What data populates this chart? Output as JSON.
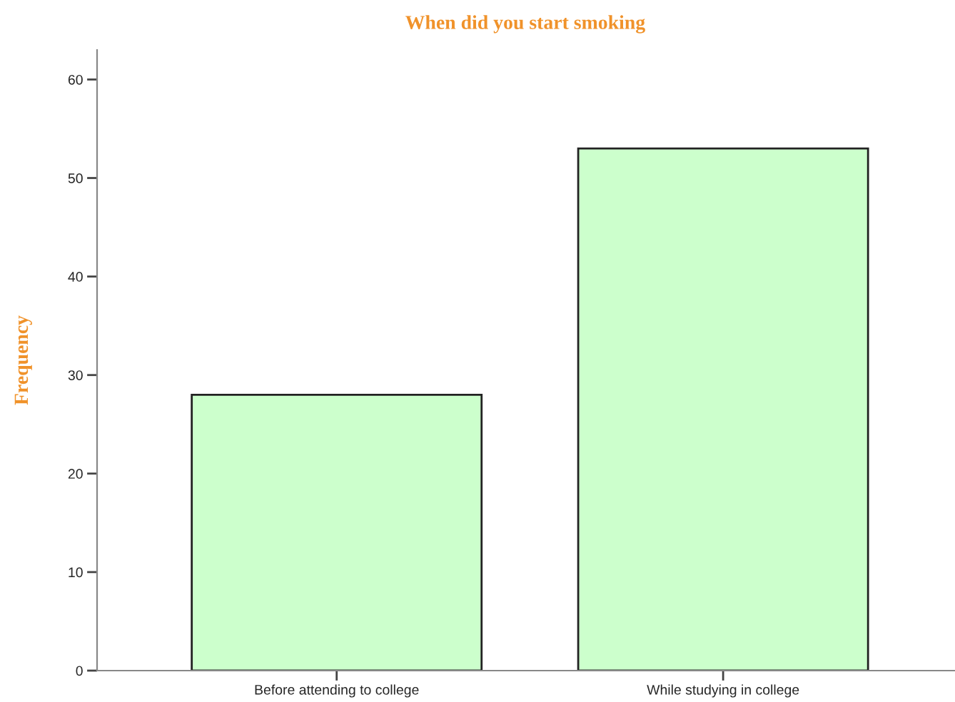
{
  "chart_data": {
    "type": "bar",
    "title": "When did you start smoking",
    "ylabel": "Frequency",
    "categories": [
      "Before attending to college",
      "While studying in college"
    ],
    "values": [
      28,
      53
    ],
    "color": "#ccffcc",
    "ylim": [
      0,
      63
    ],
    "yticks": [
      0,
      10,
      20,
      30,
      40,
      50,
      60
    ],
    "grid": false,
    "legend": false
  }
}
